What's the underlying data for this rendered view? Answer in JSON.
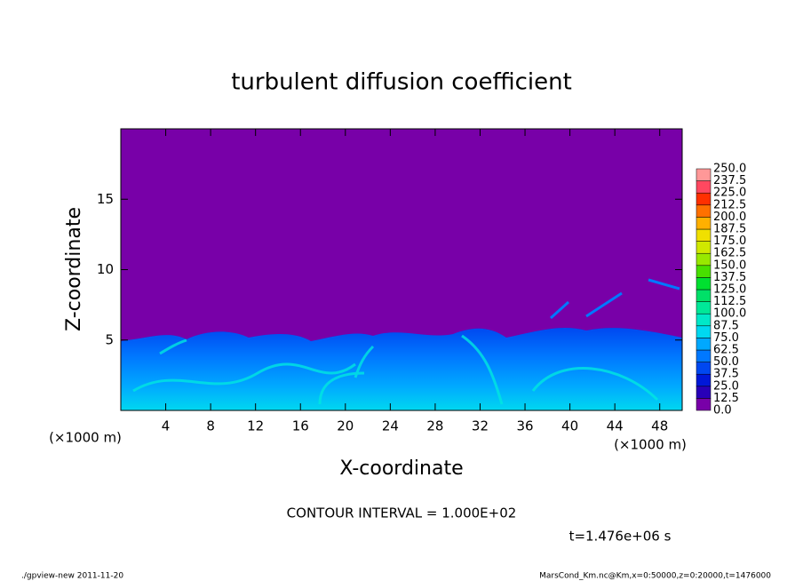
{
  "chart_data": {
    "type": "heatmap",
    "title": "turbulent diffusion coefficient",
    "xlabel": "X-coordinate",
    "ylabel": "Z-coordinate",
    "x_unit": "(×1000 m)",
    "y_unit": "(×1000 m)",
    "xlim": [
      0,
      50
    ],
    "ylim": [
      0,
      20
    ],
    "xticks": [
      4,
      8,
      12,
      16,
      20,
      24,
      28,
      32,
      36,
      40,
      44,
      48
    ],
    "yticks": [
      5,
      10,
      15
    ],
    "contour_note": "CONTOUR INTERVAL = 1.000E+02",
    "time_note": "t=1.476e+06 s",
    "footer_left": "./gpview-new  2011-11-20",
    "footer_right": "MarsCond_Km.nc@Km,x=0:50000,z=0:20000,t=1476000",
    "colorbar": {
      "levels": [
        {
          "value": 0,
          "label": "0.0"
        },
        12.5,
        {
          "value": 25,
          "label": "25.0"
        },
        37.5,
        {
          "value": 50,
          "label": "50.0"
        },
        62.5,
        {
          "value": 75,
          "label": "75.0"
        },
        87.5,
        {
          "value": 100,
          "label": "100.0"
        },
        112.5,
        {
          "value": 125,
          "label": "125.0"
        },
        137.5,
        {
          "value": 150,
          "label": "150.0"
        },
        162.5,
        {
          "value": 175,
          "label": "175.0"
        },
        187.5,
        {
          "value": 200,
          "label": "200.0"
        },
        212.5,
        {
          "value": 225,
          "label": "225.0"
        },
        237.5,
        {
          "value": 250,
          "label": "250.0"
        }
      ],
      "colors": [
        "#7800a8",
        "#2800b8",
        "#0018d8",
        "#0048f0",
        "#0078ff",
        "#00a8ff",
        "#00d8f0",
        "#00e8c8",
        "#00e898",
        "#00e068",
        "#00e030",
        "#48e000",
        "#98e800",
        "#d0e800",
        "#f0e000",
        "#ffb000",
        "#ff7000",
        "#ff3000",
        "#ff4860",
        "#ff9898"
      ]
    }
  }
}
